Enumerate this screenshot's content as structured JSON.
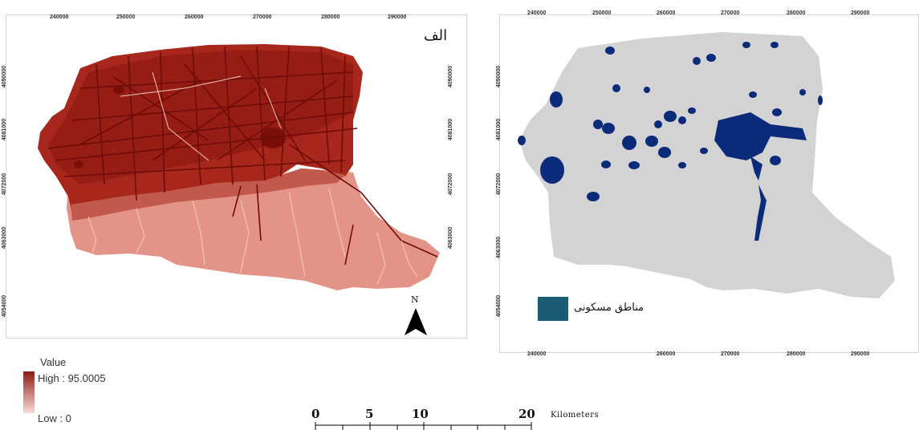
{
  "left_map": {
    "label": "الف",
    "x_ticks_top": [
      "240000",
      "250000",
      "260000",
      "270000",
      "280000",
      "290000"
    ],
    "y_ticks": [
      "4090000",
      "4081000",
      "4072000",
      "4063000",
      "4054000"
    ],
    "colors": {
      "dark": "#8e1a12",
      "mid": "#b33a2c",
      "light": "#e49486",
      "road": "#7a0f0a"
    }
  },
  "right_map": {
    "x_ticks_top": [
      "240000",
      "250000",
      "260000",
      "270000",
      "280000",
      "290000"
    ],
    "y_ticks": [
      "4090000",
      "4081000",
      "4072000",
      "4063000",
      "4054000"
    ],
    "bottom_ticks": [
      "240000",
      "260000",
      "270000",
      "280000",
      "290000"
    ],
    "legend_label": "مناطق مسكونى",
    "colors": {
      "land": "#d3d3d3",
      "settlement": "#0a2a7a",
      "legend_swatch": "#1b5b73"
    }
  },
  "north_arrow": {
    "letter": "N"
  },
  "value_legend": {
    "title": "Value",
    "high": "High : 95.0005",
    "low": "Low : 0",
    "gradient": [
      "#8e1a12",
      "#f7dcd6"
    ]
  },
  "scale_bar": {
    "labels": [
      "0",
      "5",
      "10",
      "20"
    ],
    "unit": "Kilometers"
  }
}
